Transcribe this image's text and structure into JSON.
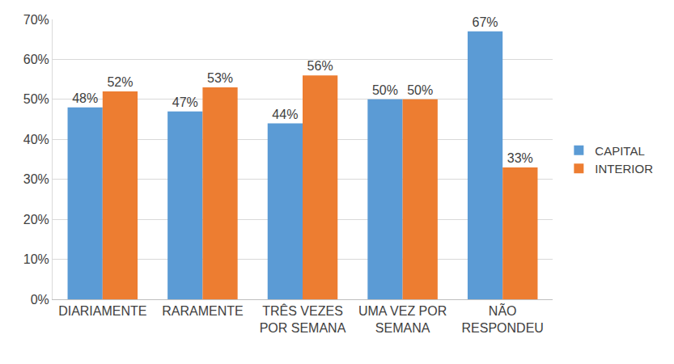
{
  "chart_data": {
    "type": "bar",
    "categories": [
      "DIARIAMENTE",
      "RARAMENTE",
      "TRÊS VEZES POR SEMANA",
      "UMA VEZ POR SEMANA",
      "NÃO RESPONDEU"
    ],
    "series": [
      {
        "name": "CAPITAL",
        "color": "#5b9bd5",
        "values": [
          48,
          47,
          44,
          50,
          67
        ],
        "value_labels": [
          "48%",
          "47%",
          "44%",
          "50%",
          "67%"
        ]
      },
      {
        "name": "INTERIOR",
        "color": "#ed7d31",
        "values": [
          52,
          53,
          56,
          50,
          33
        ],
        "value_labels": [
          "52%",
          "53%",
          "56%",
          "50%",
          "33%"
        ]
      }
    ],
    "ylim": [
      0,
      70
    ],
    "yticks": [
      {
        "value": 0,
        "label": "0%"
      },
      {
        "value": 10,
        "label": "10%"
      },
      {
        "value": 20,
        "label": "20%"
      },
      {
        "value": 30,
        "label": "30%"
      },
      {
        "value": 40,
        "label": "40%"
      },
      {
        "value": 50,
        "label": "50%"
      },
      {
        "value": 60,
        "label": "60%"
      },
      {
        "value": 70,
        "label": "70%"
      }
    ],
    "grid": true,
    "legend": "right",
    "data_labels": true
  }
}
